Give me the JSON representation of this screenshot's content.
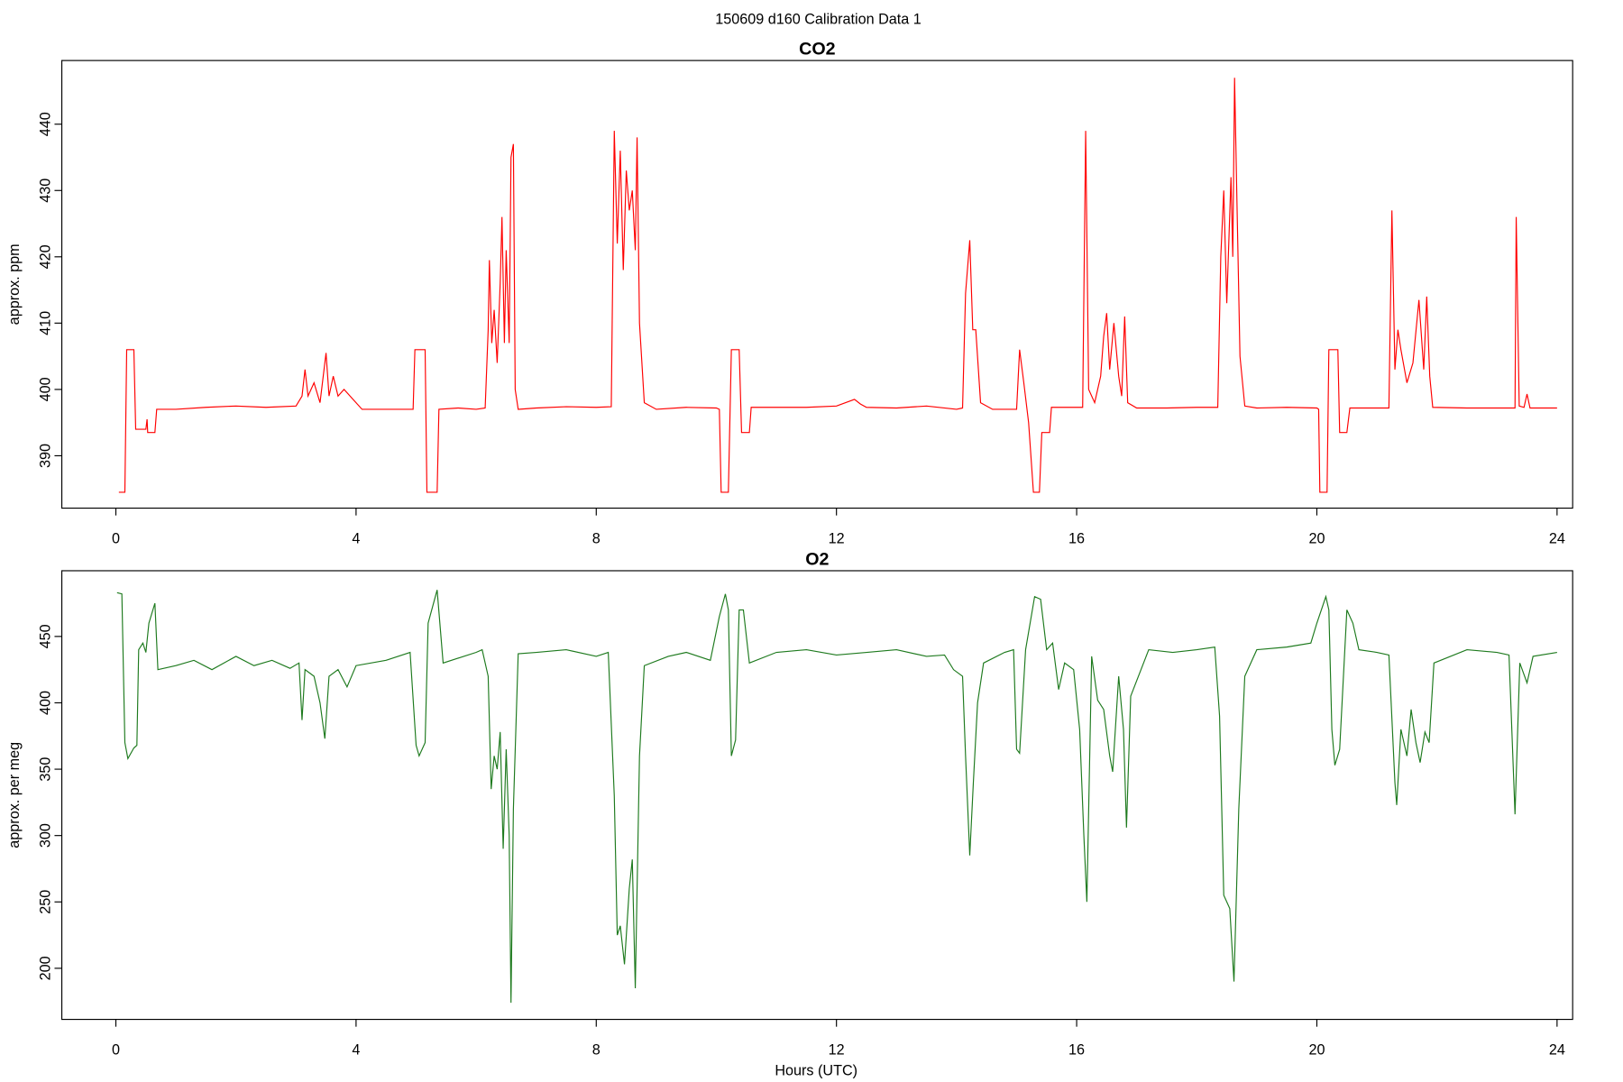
{
  "title": "150609   d160   Calibration Data 1",
  "chart_data": [
    {
      "type": "line",
      "title": "CO2",
      "y_label": "approx. ppm",
      "color": "#ff0000",
      "xlim": [
        -0.9,
        24.26
      ],
      "xticks": [
        0,
        4,
        8,
        12,
        16,
        20,
        24
      ],
      "ylim": [
        382.1,
        449.6
      ],
      "yticks": [
        390,
        400,
        410,
        420,
        430,
        440
      ],
      "x": [
        0.05,
        0.15,
        0.18,
        0.3,
        0.33,
        0.5,
        0.52,
        0.53,
        0.65,
        0.68,
        1.0,
        1.5,
        2.0,
        2.5,
        3.0,
        3.1,
        3.15,
        3.2,
        3.3,
        3.4,
        3.5,
        3.55,
        3.62,
        3.7,
        3.8,
        4.0,
        4.1,
        4.5,
        4.95,
        4.98,
        5.15,
        5.18,
        5.35,
        5.38,
        5.7,
        6.0,
        6.15,
        6.2,
        6.22,
        6.26,
        6.3,
        6.35,
        6.4,
        6.43,
        6.47,
        6.5,
        6.55,
        6.58,
        6.62,
        6.65,
        6.7,
        7.0,
        7.5,
        8.0,
        8.25,
        8.3,
        8.35,
        8.4,
        8.45,
        8.5,
        8.55,
        8.6,
        8.65,
        8.68,
        8.72,
        8.8,
        9.0,
        9.5,
        10.0,
        10.05,
        10.08,
        10.2,
        10.25,
        10.38,
        10.42,
        10.55,
        10.58,
        11.0,
        11.5,
        12.0,
        12.3,
        12.4,
        12.5,
        13.0,
        13.5,
        14.0,
        14.1,
        14.15,
        14.22,
        14.27,
        14.32,
        14.4,
        14.6,
        15.0,
        15.05,
        15.12,
        15.2,
        15.28,
        15.38,
        15.42,
        15.55,
        15.58,
        15.9,
        16.1,
        16.15,
        16.2,
        16.3,
        16.4,
        16.45,
        16.5,
        16.55,
        16.62,
        16.7,
        16.75,
        16.8,
        16.85,
        17.0,
        17.5,
        18.0,
        18.35,
        18.4,
        18.45,
        18.5,
        18.57,
        18.6,
        18.63,
        18.67,
        18.72,
        18.8,
        19.0,
        19.5,
        20.0,
        20.03,
        20.05,
        20.17,
        20.2,
        20.35,
        20.38,
        20.5,
        20.55,
        21.2,
        21.25,
        21.3,
        21.35,
        21.4,
        21.5,
        21.6,
        21.7,
        21.78,
        21.83,
        21.88,
        21.93,
        22.5,
        23.0,
        23.3,
        23.32,
        23.37,
        23.45,
        23.5,
        23.55,
        24.0
      ],
      "values": [
        384.5,
        384.5,
        406,
        406,
        394,
        394,
        395.5,
        393.5,
        393.5,
        397,
        397,
        397.3,
        397.5,
        397.3,
        397.5,
        399,
        403,
        399,
        401,
        398,
        405.5,
        399,
        402,
        399,
        400,
        398,
        397,
        397,
        397,
        406,
        406,
        384.5,
        384.5,
        397,
        397.2,
        397,
        397.2,
        409,
        419.5,
        407,
        412,
        404,
        416,
        426,
        407,
        421,
        407,
        435,
        437,
        400,
        397,
        397.2,
        397.4,
        397.3,
        397.4,
        439,
        422,
        436,
        418,
        433,
        427,
        430,
        421,
        438,
        410,
        398,
        397,
        397.3,
        397.2,
        397,
        384.5,
        384.5,
        406,
        406,
        393.5,
        393.5,
        397.3,
        397.3,
        397.3,
        397.5,
        398.5,
        397.8,
        397.3,
        397.2,
        397.5,
        397,
        397.2,
        414.5,
        422.5,
        409,
        409,
        398,
        397,
        397,
        406,
        401,
        395,
        384.5,
        384.5,
        393.5,
        393.5,
        397.3,
        397.3,
        397.3,
        439,
        400,
        398,
        402,
        408,
        411.5,
        403,
        410,
        402,
        399,
        411,
        398,
        397.2,
        397.2,
        397.3,
        397.3,
        420,
        430,
        413,
        432,
        420,
        447,
        428,
        405,
        397.5,
        397.2,
        397.3,
        397.2,
        397,
        384.5,
        384.5,
        406,
        406,
        393.5,
        393.5,
        397.2,
        397.2,
        427,
        403,
        409,
        406,
        401,
        404,
        413.5,
        403,
        414,
        402,
        397.3,
        397.2,
        397.2,
        397.2,
        426,
        397.5,
        397.3,
        399.3,
        397.2,
        397.2
      ]
    },
    {
      "type": "line",
      "title": "O2",
      "y_label": "approx. per meg",
      "x_label": "Hours (UTC)",
      "color": "#1e7a1e",
      "xlim": [
        -0.9,
        24.26
      ],
      "xticks": [
        0,
        4,
        8,
        12,
        16,
        20,
        24
      ],
      "ylim": [
        161.5,
        499.5
      ],
      "yticks": [
        200,
        250,
        300,
        350,
        400,
        450
      ],
      "x": [
        0.02,
        0.1,
        0.15,
        0.2,
        0.3,
        0.35,
        0.38,
        0.45,
        0.5,
        0.55,
        0.65,
        0.7,
        1.0,
        1.3,
        1.6,
        2.0,
        2.3,
        2.6,
        2.9,
        3.05,
        3.1,
        3.15,
        3.3,
        3.4,
        3.48,
        3.55,
        3.7,
        3.85,
        4.0,
        4.5,
        4.9,
        5.0,
        5.05,
        5.15,
        5.2,
        5.35,
        5.45,
        6.0,
        6.1,
        6.2,
        6.25,
        6.3,
        6.35,
        6.4,
        6.45,
        6.5,
        6.55,
        6.58,
        6.62,
        6.7,
        7.0,
        7.5,
        8.0,
        8.2,
        8.3,
        8.35,
        8.4,
        8.47,
        8.55,
        8.6,
        8.65,
        8.72,
        8.8,
        9.2,
        9.5,
        9.9,
        10.05,
        10.15,
        10.2,
        10.25,
        10.32,
        10.38,
        10.45,
        10.55,
        11.0,
        11.5,
        12.0,
        12.5,
        13.0,
        13.5,
        13.8,
        13.95,
        14.1,
        14.15,
        14.22,
        14.28,
        14.35,
        14.45,
        14.8,
        14.95,
        15.0,
        15.05,
        15.15,
        15.3,
        15.4,
        15.5,
        15.6,
        15.7,
        15.8,
        15.95,
        16.05,
        16.12,
        16.17,
        16.25,
        16.35,
        16.45,
        16.55,
        16.6,
        16.7,
        16.78,
        16.83,
        16.9,
        17.2,
        17.6,
        18.0,
        18.3,
        18.38,
        18.45,
        18.55,
        18.62,
        18.7,
        18.8,
        19.0,
        19.5,
        19.9,
        20.0,
        20.15,
        20.2,
        20.25,
        20.3,
        20.38,
        20.5,
        20.6,
        20.7,
        21.0,
        21.2,
        21.3,
        21.33,
        21.4,
        21.5,
        21.57,
        21.65,
        21.72,
        21.8,
        21.87,
        21.95,
        22.5,
        23.0,
        23.2,
        23.3,
        23.38,
        23.5,
        23.6,
        24.0
      ],
      "values": [
        483,
        482,
        370,
        358,
        366,
        368,
        440,
        445,
        438,
        460,
        475,
        425,
        428,
        432,
        425,
        435,
        428,
        432,
        426,
        430,
        387,
        425,
        420,
        400,
        373,
        420,
        425,
        412,
        428,
        432,
        438,
        368,
        360,
        370,
        460,
        485,
        430,
        438,
        440,
        420,
        335,
        360,
        350,
        378,
        290,
        365,
        300,
        174,
        320,
        437,
        438,
        440,
        435,
        438,
        330,
        225,
        232,
        203,
        260,
        282,
        185,
        360,
        428,
        435,
        438,
        432,
        465,
        482,
        470,
        360,
        372,
        470,
        470,
        430,
        438,
        440,
        436,
        438,
        440,
        435,
        436,
        425,
        420,
        360,
        285,
        340,
        400,
        430,
        438,
        440,
        365,
        362,
        440,
        480,
        478,
        440,
        445,
        410,
        430,
        425,
        380,
        300,
        250,
        435,
        402,
        395,
        360,
        348,
        420,
        380,
        306,
        405,
        440,
        438,
        440,
        442,
        390,
        255,
        245,
        190,
        320,
        420,
        440,
        442,
        445,
        460,
        480,
        470,
        380,
        353,
        365,
        470,
        460,
        440,
        438,
        436,
        340,
        323,
        380,
        360,
        395,
        370,
        355,
        378,
        370,
        430,
        440,
        438,
        436,
        316,
        430,
        415,
        435,
        438
      ]
    }
  ]
}
